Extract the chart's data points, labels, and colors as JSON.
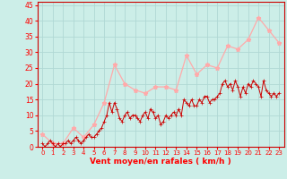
{
  "title": "",
  "xlabel": "Vent moyen/en rafales ( km/h )",
  "bg_color": "#cceee8",
  "grid_color": "#b0d8d4",
  "ylim": [
    0,
    46
  ],
  "xlim": [
    -0.5,
    23.5
  ],
  "yticks": [
    0,
    5,
    10,
    15,
    20,
    25,
    30,
    35,
    40,
    45
  ],
  "xtick_labels": [
    "0",
    "1",
    "2",
    "3",
    "4",
    "5",
    "6",
    "7",
    "8",
    "9",
    "10",
    "11",
    "12",
    "13",
    "14",
    "15",
    "16",
    "17",
    "18",
    "19",
    "20",
    "21",
    "22",
    "23"
  ],
  "rafales_color": "#ffaaaa",
  "moyen_color": "#cc0000",
  "rafales_x": [
    0,
    1,
    2,
    3,
    4,
    5,
    6,
    7,
    8,
    9,
    10,
    11,
    12,
    13,
    14,
    15,
    16,
    17,
    18,
    19,
    20,
    21,
    22,
    23
  ],
  "rafales_y": [
    4,
    1,
    1,
    6,
    3,
    7,
    14,
    26,
    20,
    18,
    17,
    19,
    19,
    18,
    29,
    23,
    26,
    25,
    32,
    31,
    34,
    41,
    37,
    33
  ],
  "moyen_x": [
    0,
    0.25,
    0.5,
    0.75,
    1,
    1.25,
    1.5,
    1.75,
    2,
    2.25,
    2.5,
    2.75,
    3,
    3.25,
    3.5,
    3.75,
    4,
    4.25,
    4.5,
    4.75,
    5,
    5.25,
    5.5,
    5.75,
    6,
    6.25,
    6.5,
    6.75,
    7,
    7.25,
    7.5,
    7.75,
    8,
    8.25,
    8.5,
    8.75,
    9,
    9.25,
    9.5,
    9.75,
    10,
    10.25,
    10.5,
    10.75,
    11,
    11.25,
    11.5,
    11.75,
    12,
    12.25,
    12.5,
    12.75,
    13,
    13.25,
    13.5,
    13.75,
    14,
    14.25,
    14.5,
    14.75,
    15,
    15.25,
    15.5,
    15.75,
    16,
    16.25,
    16.5,
    16.75,
    17,
    17.25,
    17.5,
    17.75,
    18,
    18.25,
    18.5,
    18.75,
    19,
    19.25,
    19.5,
    19.75,
    20,
    20.25,
    20.5,
    20.75,
    21,
    21.25,
    21.5,
    21.75,
    22,
    22.25,
    22.5,
    22.75,
    23
  ],
  "moyen_y": [
    1,
    0,
    1,
    2,
    1,
    0,
    1,
    0,
    1,
    1,
    2,
    1,
    2,
    3,
    2,
    1,
    2,
    3,
    4,
    3,
    3,
    4,
    5,
    6,
    8,
    10,
    14,
    11,
    14,
    12,
    9,
    8,
    10,
    11,
    9,
    10,
    10,
    9,
    8,
    10,
    11,
    9,
    12,
    11,
    9,
    10,
    7,
    8,
    10,
    9,
    10,
    11,
    10,
    12,
    10,
    15,
    14,
    13,
    15,
    13,
    13,
    15,
    14,
    16,
    16,
    14,
    15,
    15,
    16,
    17,
    20,
    21,
    19,
    20,
    18,
    21,
    19,
    16,
    19,
    17,
    20,
    19,
    21,
    20,
    19,
    16,
    21,
    18,
    17,
    16,
    17,
    16,
    17
  ]
}
